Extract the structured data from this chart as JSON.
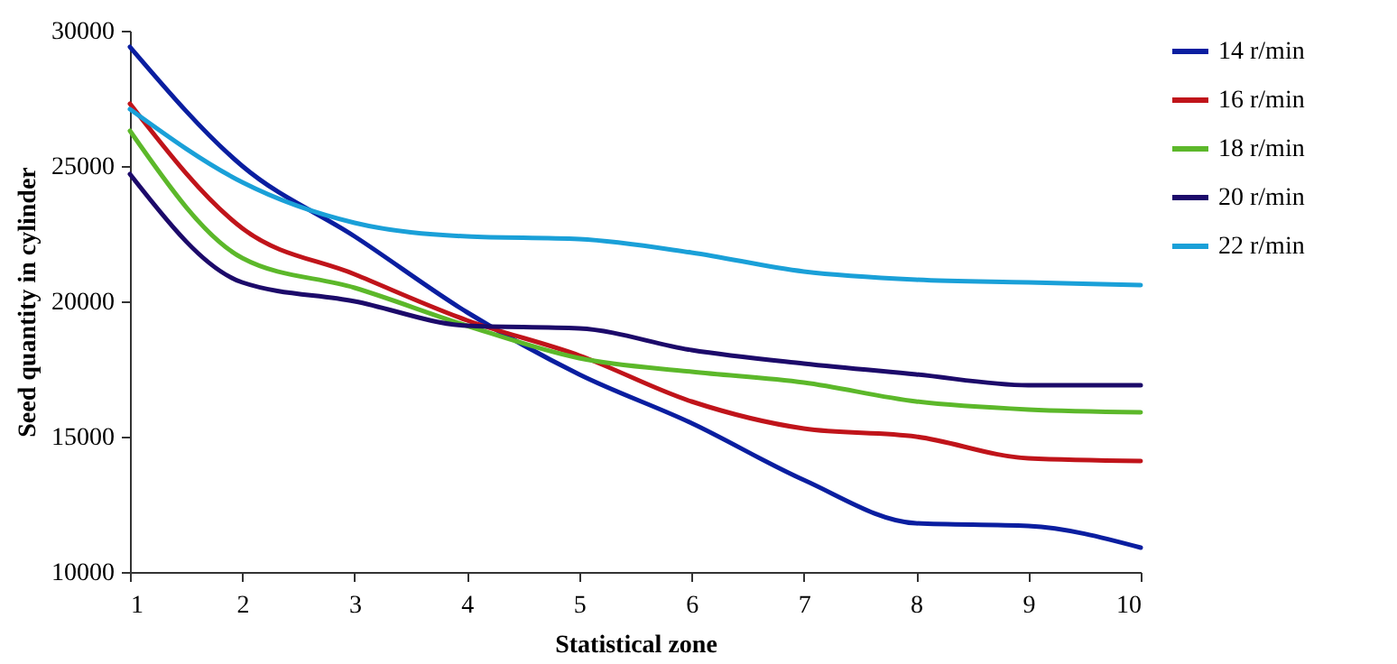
{
  "chart_data": {
    "type": "line",
    "xlabel": "Statistical zone",
    "ylabel": "Seed quantity in cylinder",
    "x": [
      1,
      2,
      3,
      4,
      5,
      6,
      7,
      8,
      9,
      10
    ],
    "xlim": [
      1,
      10
    ],
    "xticks": [
      1,
      2,
      3,
      4,
      5,
      6,
      7,
      8,
      9,
      10
    ],
    "ylim": [
      10000,
      30000
    ],
    "yticks": [
      10000,
      15000,
      20000,
      25000,
      30000
    ],
    "grid": false,
    "legend": "right",
    "marker": "none",
    "line_style": "solid",
    "series": [
      {
        "name": "14 r/min",
        "color": "#0a1ea0",
        "values": [
          29400,
          25000,
          22400,
          19600,
          17300,
          15500,
          13400,
          11800,
          11700,
          10900
        ]
      },
      {
        "name": "16  r/min",
        "color": "#c0141a",
        "values": [
          27300,
          22700,
          21000,
          19300,
          18000,
          16300,
          15300,
          15000,
          14200,
          14100
        ]
      },
      {
        "name": "18 r/min",
        "color": "#5cb82a",
        "values": [
          26300,
          21600,
          20500,
          19100,
          17900,
          17400,
          17000,
          16300,
          16000,
          15900
        ]
      },
      {
        "name": "20 r/min",
        "color": "#1c0a6a",
        "values": [
          24700,
          20700,
          20000,
          19100,
          19000,
          18200,
          17700,
          17300,
          16900,
          16900
        ]
      },
      {
        "name": "22 r/min",
        "color": "#1aa0d8",
        "values": [
          27100,
          24400,
          22900,
          22400,
          22300,
          21800,
          21100,
          20800,
          20700,
          20600
        ]
      }
    ]
  }
}
